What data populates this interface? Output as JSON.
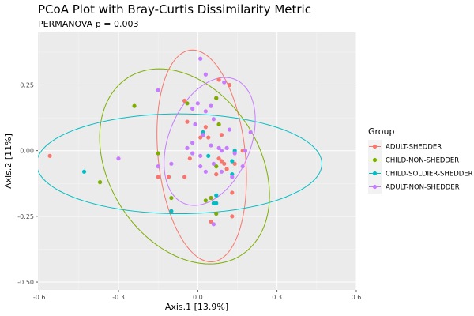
{
  "chart_data": {
    "type": "scatter",
    "title": "PCoA Plot with Bray-Curtis Dissimilarity Metric",
    "subtitle": "PERMANOVA p = 0.003",
    "xlabel": "Axis.1   [13.9%]",
    "ylabel": "Axis.2   [11%]",
    "xlim": [
      -0.605,
      0.6
    ],
    "ylim": [
      -0.53,
      0.45
    ],
    "x_ticks": [
      -0.6,
      -0.3,
      0.0,
      0.3,
      0.6
    ],
    "x_tick_labels": [
      "-0.6",
      "-0.3",
      "0.0",
      "0.3",
      "0.6"
    ],
    "y_ticks": [
      -0.5,
      -0.25,
      0.0,
      0.25
    ],
    "y_tick_labels": [
      "-0.50",
      "-0.25",
      "0.00",
      "0.25"
    ],
    "grid": true,
    "legend": {
      "title": "Group",
      "position": "right"
    },
    "series": [
      {
        "name": "ADULT-SHEDDER",
        "color": "#F8766D",
        "points": [
          [
            -0.56,
            -0.02
          ],
          [
            -0.05,
            0.19
          ],
          [
            -0.04,
            0.11
          ],
          [
            -0.05,
            -0.1
          ],
          [
            -0.11,
            -0.1
          ],
          [
            -0.03,
            -0.03
          ],
          [
            0.01,
            0.05
          ],
          [
            0.04,
            0.05
          ],
          [
            0.03,
            0.09
          ],
          [
            0.08,
            0.27
          ],
          [
            0.07,
            0.2
          ],
          [
            0.12,
            0.25
          ],
          [
            0.08,
            0.1
          ],
          [
            0.09,
            0.06
          ],
          [
            0.08,
            -0.03
          ],
          [
            0.1,
            -0.05
          ],
          [
            0.14,
            -0.05
          ],
          [
            0.11,
            -0.07
          ],
          [
            0.09,
            -0.04
          ],
          [
            0.07,
            -0.09
          ],
          [
            0.05,
            -0.18
          ],
          [
            0.05,
            -0.27
          ],
          [
            0.13,
            -0.25
          ],
          [
            0.13,
            -0.16
          ],
          [
            0.17,
            0.0
          ],
          [
            -0.15,
            -0.1
          ]
        ]
      },
      {
        "name": "CHILD-NON-SHEDDER",
        "color": "#7CAE00",
        "points": [
          [
            -0.24,
            0.17
          ],
          [
            -0.37,
            -0.12
          ],
          [
            -0.15,
            -0.01
          ],
          [
            -0.1,
            -0.18
          ],
          [
            -0.04,
            0.18
          ],
          [
            0.07,
            0.2
          ],
          [
            0.08,
            0.1
          ],
          [
            0.07,
            -0.06
          ],
          [
            0.03,
            -0.19
          ],
          [
            0.05,
            -0.18
          ],
          [
            0.07,
            -0.24
          ]
        ]
      },
      {
        "name": "CHILD-SOLDIER-SHEDDER",
        "color": "#00BFC4",
        "points": [
          [
            -0.43,
            -0.08
          ],
          [
            -0.1,
            -0.23
          ],
          [
            0.02,
            0.07
          ],
          [
            0.04,
            -0.02
          ],
          [
            0.13,
            -0.04
          ],
          [
            0.14,
            0.0
          ],
          [
            0.13,
            -0.09
          ],
          [
            0.06,
            -0.2
          ],
          [
            0.07,
            -0.2
          ],
          [
            0.07,
            -0.17
          ]
        ]
      },
      {
        "name": "ADULT-NON-SHEDDER",
        "color": "#C77CFF",
        "points": [
          [
            0.01,
            0.35
          ],
          [
            0.03,
            0.29
          ],
          [
            0.1,
            0.26
          ],
          [
            -0.15,
            0.23
          ],
          [
            -0.02,
            0.16
          ],
          [
            0.0,
            0.18
          ],
          [
            0.05,
            0.17
          ],
          [
            0.03,
            0.15
          ],
          [
            0.06,
            0.12
          ],
          [
            -0.01,
            0.1
          ],
          [
            0.02,
            0.06
          ],
          [
            -0.02,
            0.03
          ],
          [
            0.05,
            0.02
          ],
          [
            0.09,
            0.0
          ],
          [
            0.11,
            0.01
          ],
          [
            0.14,
            -0.01
          ],
          [
            0.18,
            0.0
          ],
          [
            0.2,
            0.07
          ],
          [
            -0.3,
            -0.03
          ],
          [
            -0.15,
            -0.06
          ],
          [
            -0.1,
            -0.05
          ],
          [
            -0.04,
            0.01
          ],
          [
            -0.02,
            -0.01
          ],
          [
            0.01,
            -0.02
          ],
          [
            0.01,
            -0.06
          ],
          [
            0.03,
            -0.08
          ],
          [
            0.06,
            -0.05
          ],
          [
            0.09,
            -0.08
          ],
          [
            0.13,
            -0.1
          ],
          [
            0.17,
            -0.06
          ],
          [
            0.06,
            -0.28
          ],
          [
            0.12,
            0.08
          ],
          [
            0.08,
            0.01
          ]
        ]
      }
    ],
    "ellipses": [
      {
        "series": "ADULT-SHEDDER",
        "cx": 0.015,
        "cy": -0.02,
        "rx": 0.165,
        "ry": 0.405,
        "angle": 6
      },
      {
        "series": "CHILD-NON-SHEDDER",
        "cx": -0.05,
        "cy": -0.06,
        "rx": 0.4,
        "ry": 0.285,
        "angle": -58
      },
      {
        "series": "CHILD-SOLDIER-SHEDDER",
        "cx": -0.07,
        "cy": -0.05,
        "rx": 0.54,
        "ry": 0.19,
        "angle": 0
      },
      {
        "series": "ADULT-NON-SHEDDER",
        "cx": 0.045,
        "cy": 0.035,
        "rx": 0.155,
        "ry": 0.255,
        "angle": -22
      }
    ]
  }
}
